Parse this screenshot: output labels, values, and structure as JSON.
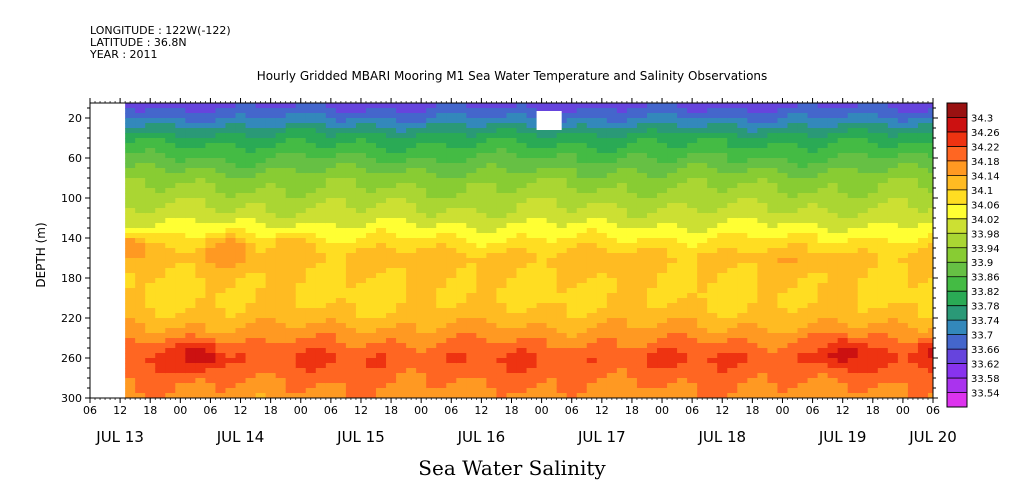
{
  "meta": {
    "longitude": "LONGITUDE : 122W(-122)",
    "latitude": "LATITUDE : 36.8N",
    "year": "YEAR : 2011"
  },
  "chart_data": {
    "type": "heatmap",
    "title": "Hourly Gridded MBARI Mooring M1 Sea Water Temperature and Salinity Observations",
    "subtitle": "Sea Water Salinity",
    "ylabel": "DEPTH (m)",
    "xlabel": "",
    "x_start": "JUL 13 06",
    "x_end": "JUL 20 06",
    "x_step_hours": 6,
    "x_hour_labels": [
      "06",
      "12",
      "18",
      "00",
      "06",
      "12",
      "18",
      "00",
      "06",
      "12",
      "18",
      "00",
      "06",
      "12",
      "18",
      "00",
      "06",
      "12",
      "18",
      "00",
      "06",
      "12",
      "18",
      "00",
      "06",
      "12",
      "18",
      "00",
      "06"
    ],
    "x_day_labels": [
      {
        "label": "JUL 13",
        "hours_from_start": 6
      },
      {
        "label": "JUL 14",
        "hours_from_start": 30
      },
      {
        "label": "JUL 15",
        "hours_from_start": 54
      },
      {
        "label": "JUL 16",
        "hours_from_start": 78
      },
      {
        "label": "JUL 17",
        "hours_from_start": 102
      },
      {
        "label": "JUL 18",
        "hours_from_start": 126
      },
      {
        "label": "JUL 19",
        "hours_from_start": 150
      },
      {
        "label": "JUL 20",
        "hours_from_start": 168
      }
    ],
    "y_ticks": [
      20,
      60,
      100,
      140,
      180,
      220,
      260,
      300
    ],
    "ylim": [
      300,
      5
    ],
    "data_start_hours": 7,
    "missing_block": {
      "hours_from_start": [
        89,
        94
      ],
      "depth": [
        13,
        32
      ]
    },
    "colorbar": {
      "levels": [
        33.54,
        33.58,
        33.62,
        33.66,
        33.7,
        33.74,
        33.78,
        33.82,
        33.86,
        33.9,
        33.94,
        33.98,
        34.02,
        34.06,
        34.1,
        34.14,
        34.18,
        34.22,
        34.26,
        34.3
      ],
      "colors": [
        "#dd33ee",
        "#aa33ee",
        "#8833ee",
        "#6644dd",
        "#4466cc",
        "#3388bb",
        "#2a9977",
        "#2aaa55",
        "#44bb44",
        "#66c044",
        "#88cc33",
        "#aad633",
        "#cce033",
        "#ffff33",
        "#ffdd22",
        "#ffbb22",
        "#ff9922",
        "#ff6622",
        "#ee3311",
        "#cc1111",
        "#991111"
      ]
    },
    "profile": [
      {
        "depth": 5,
        "value": 33.64
      },
      {
        "depth": 20,
        "value": 33.7
      },
      {
        "depth": 40,
        "value": 33.8
      },
      {
        "depth": 60,
        "value": 33.86
      },
      {
        "depth": 80,
        "value": 33.92
      },
      {
        "depth": 100,
        "value": 33.96
      },
      {
        "depth": 120,
        "value": 34.0
      },
      {
        "depth": 140,
        "value": 34.06
      },
      {
        "depth": 160,
        "value": 34.12
      },
      {
        "depth": 180,
        "value": 34.1
      },
      {
        "depth": 200,
        "value": 34.09
      },
      {
        "depth": 220,
        "value": 34.12
      },
      {
        "depth": 240,
        "value": 34.17
      },
      {
        "depth": 260,
        "value": 34.22
      },
      {
        "depth": 280,
        "value": 34.19
      },
      {
        "depth": 300,
        "value": 34.16
      }
    ],
    "hotspots": [
      {
        "hour": 22,
        "depth": 258,
        "value": 34.3
      },
      {
        "hour": 150,
        "depth": 255,
        "value": 34.28
      },
      {
        "hour": 168,
        "depth": 255,
        "value": 34.27
      },
      {
        "hour": 8,
        "depth": 150,
        "value": 34.18
      },
      {
        "hour": 27,
        "depth": 152,
        "value": 34.18
      },
      {
        "hour": 40,
        "depth": 150,
        "value": 34.14
      }
    ]
  }
}
